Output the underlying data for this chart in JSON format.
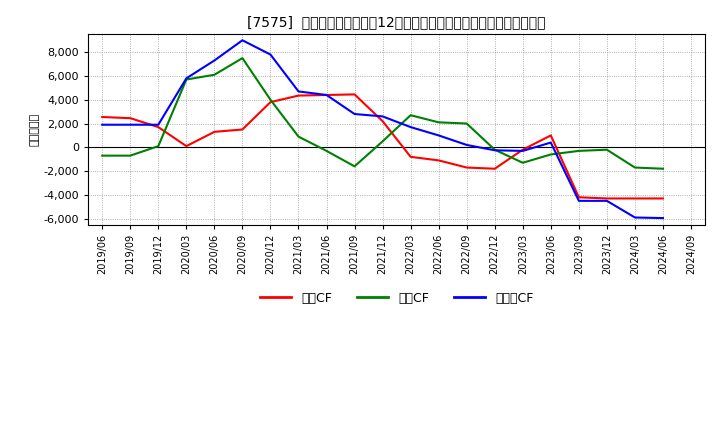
{
  "title": "[7575]  キャッシュフローの12か月移動合計の対前年同期増減額の推移",
  "ylabel": "（百万円）",
  "background_color": "#ffffff",
  "plot_bg_color": "#ffffff",
  "grid_color": "#aaaaaa",
  "ylim": [
    -6500,
    9500
  ],
  "yticks": [
    -6000,
    -4000,
    -2000,
    0,
    2000,
    4000,
    6000,
    8000
  ],
  "x_labels": [
    "2019/06",
    "2019/09",
    "2019/12",
    "2020/03",
    "2020/06",
    "2020/09",
    "2020/12",
    "2021/03",
    "2021/06",
    "2021/09",
    "2021/12",
    "2022/03",
    "2022/06",
    "2022/09",
    "2022/12",
    "2023/03",
    "2023/06",
    "2023/09",
    "2023/12",
    "2024/03",
    "2024/06",
    "2024/09"
  ],
  "series": {
    "営業CF": {
      "color": "#ff0000",
      "data_x": [
        "2019/06",
        "2019/09",
        "2019/12",
        "2020/03",
        "2020/06",
        "2020/09",
        "2020/12",
        "2021/03",
        "2021/06",
        "2021/09",
        "2021/12",
        "2022/03",
        "2022/06",
        "2022/09",
        "2022/12",
        "2023/03",
        "2023/06",
        "2023/09",
        "2023/12",
        "2024/03",
        "2024/06"
      ],
      "data_y": [
        2550,
        2450,
        1700,
        100,
        1300,
        1500,
        3800,
        4350,
        4400,
        4450,
        2200,
        -800,
        -1100,
        -1700,
        -1800,
        -200,
        1000,
        -4200,
        -4300,
        -4300,
        -4300
      ]
    },
    "投資CF": {
      "color": "#008000",
      "data_x": [
        "2019/06",
        "2019/09",
        "2019/12",
        "2020/03",
        "2020/06",
        "2020/09",
        "2020/12",
        "2021/03",
        "2021/06",
        "2021/09",
        "2021/12",
        "2022/03",
        "2022/06",
        "2022/09",
        "2022/12",
        "2023/03",
        "2023/06",
        "2023/09",
        "2023/12",
        "2024/03",
        "2024/06"
      ],
      "data_y": [
        -700,
        -700,
        100,
        5700,
        6100,
        7500,
        4000,
        900,
        -300,
        -1600,
        500,
        2700,
        2100,
        2000,
        -200,
        -1300,
        -600,
        -300,
        -200,
        -1700,
        -1800
      ]
    },
    "フリーCF": {
      "color": "#0000ff",
      "data_x": [
        "2019/06",
        "2019/09",
        "2019/12",
        "2020/03",
        "2020/06",
        "2020/09",
        "2020/12",
        "2021/03",
        "2021/06",
        "2021/09",
        "2021/12",
        "2022/03",
        "2022/06",
        "2022/09",
        "2022/12",
        "2023/03",
        "2023/06",
        "2023/09",
        "2023/12",
        "2024/03",
        "2024/06"
      ],
      "data_y": [
        1900,
        1900,
        1900,
        5800,
        7300,
        9000,
        7800,
        4700,
        4400,
        2800,
        2600,
        1700,
        1000,
        200,
        -250,
        -300,
        400,
        -4500,
        -4500,
        -5900,
        -5950
      ]
    }
  },
  "legend": {
    "entries": [
      "営業CF",
      "投資CF",
      "フリーCF"
    ],
    "colors": [
      "#ff0000",
      "#008000",
      "#0000ff"
    ]
  }
}
